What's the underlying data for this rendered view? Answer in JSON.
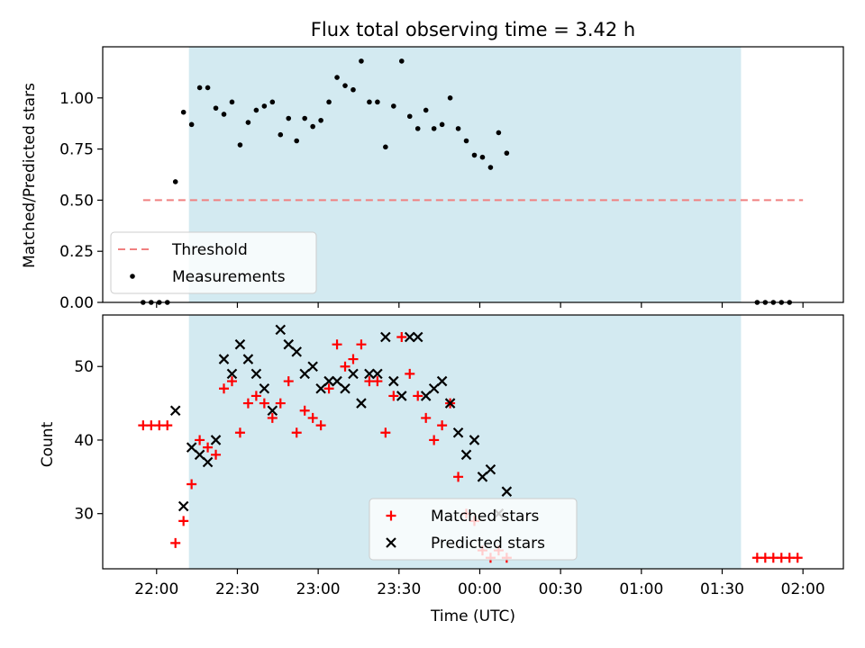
{
  "chart_data": [
    {
      "type": "scatter",
      "title": "Flux total observing time = 3.42 h",
      "xlabel": "",
      "ylabel": "Matched/Predicted stars",
      "ylim": [
        0.0,
        1.25
      ],
      "yticks": [
        "0.00",
        "0.25",
        "0.50",
        "0.75",
        "1.00"
      ],
      "yticks_values": [
        0.0,
        0.25,
        0.5,
        0.75,
        1.0
      ],
      "x_axis": "time (UTC), shared with lower panel",
      "shaded_interval": {
        "start": "22:12",
        "end": "01:37",
        "color": "#d3eaf1"
      },
      "threshold": {
        "name": "Threshold",
        "value": 0.5,
        "from": "21:55",
        "to": "02:00",
        "color": "#f08080",
        "style": "dashed"
      },
      "legend": {
        "placement": "lower-left",
        "entries": [
          "Threshold",
          "Measurements"
        ]
      },
      "series": [
        {
          "name": "Measurements",
          "color": "#000000",
          "marker": "dot",
          "points": [
            [
              "21:55",
              0.0
            ],
            [
              "21:58",
              0.0
            ],
            [
              "22:01",
              0.0
            ],
            [
              "22:04",
              0.0
            ],
            [
              "22:07",
              0.59
            ],
            [
              "22:10",
              0.93
            ],
            [
              "22:13",
              0.87
            ],
            [
              "22:16",
              1.05
            ],
            [
              "22:19",
              1.05
            ],
            [
              "22:22",
              0.95
            ],
            [
              "22:25",
              0.92
            ],
            [
              "22:28",
              0.98
            ],
            [
              "22:31",
              0.77
            ],
            [
              "22:34",
              0.88
            ],
            [
              "22:37",
              0.94
            ],
            [
              "22:40",
              0.96
            ],
            [
              "22:43",
              0.98
            ],
            [
              "22:46",
              0.82
            ],
            [
              "22:49",
              0.9
            ],
            [
              "22:52",
              0.79
            ],
            [
              "22:55",
              0.9
            ],
            [
              "22:58",
              0.86
            ],
            [
              "23:01",
              0.89
            ],
            [
              "23:04",
              0.98
            ],
            [
              "23:07",
              1.1
            ],
            [
              "23:10",
              1.06
            ],
            [
              "23:13",
              1.04
            ],
            [
              "23:16",
              1.18
            ],
            [
              "23:19",
              0.98
            ],
            [
              "23:22",
              0.98
            ],
            [
              "23:25",
              0.76
            ],
            [
              "23:28",
              0.96
            ],
            [
              "23:31",
              1.18
            ],
            [
              "23:34",
              0.91
            ],
            [
              "23:37",
              0.85
            ],
            [
              "23:40",
              0.94
            ],
            [
              "23:43",
              0.85
            ],
            [
              "23:46",
              0.87
            ],
            [
              "23:49",
              1.0
            ],
            [
              "23:52",
              0.85
            ],
            [
              "23:55",
              0.79
            ],
            [
              "23:58",
              0.72
            ],
            [
              "00:01",
              0.71
            ],
            [
              "00:04",
              0.66
            ],
            [
              "00:07",
              0.83
            ],
            [
              "00:10",
              0.73
            ],
            [
              "01:43",
              0.0
            ],
            [
              "01:46",
              0.0
            ],
            [
              "01:49",
              0.0
            ],
            [
              "01:52",
              0.0
            ],
            [
              "01:55",
              0.0
            ]
          ]
        }
      ]
    },
    {
      "type": "scatter",
      "title": "",
      "xlabel": "Time (UTC)",
      "ylabel": "Count",
      "ylim": [
        22.5,
        57
      ],
      "yticks": [
        "30",
        "40",
        "50"
      ],
      "yticks_values": [
        30,
        40,
        50
      ],
      "xticks": [
        "22:00",
        "22:30",
        "23:00",
        "23:30",
        "00:00",
        "00:30",
        "01:00",
        "01:30",
        "02:00"
      ],
      "shaded_interval": {
        "start": "22:12",
        "end": "01:37",
        "color": "#d3eaf1"
      },
      "legend": {
        "placement": "lower-center",
        "entries": [
          "Matched stars",
          "Predicted stars"
        ]
      },
      "series": [
        {
          "name": "Matched stars",
          "color": "#ff0000",
          "marker": "plus",
          "points": [
            [
              "21:55",
              42
            ],
            [
              "21:58",
              42
            ],
            [
              "22:01",
              42
            ],
            [
              "22:04",
              42
            ],
            [
              "22:07",
              26
            ],
            [
              "22:10",
              29
            ],
            [
              "22:13",
              34
            ],
            [
              "22:16",
              40
            ],
            [
              "22:19",
              39
            ],
            [
              "22:22",
              38
            ],
            [
              "22:25",
              47
            ],
            [
              "22:28",
              48
            ],
            [
              "22:31",
              41
            ],
            [
              "22:34",
              45
            ],
            [
              "22:37",
              46
            ],
            [
              "22:40",
              45
            ],
            [
              "22:43",
              43
            ],
            [
              "22:46",
              45
            ],
            [
              "22:49",
              48
            ],
            [
              "22:52",
              41
            ],
            [
              "22:55",
              44
            ],
            [
              "22:58",
              43
            ],
            [
              "23:01",
              42
            ],
            [
              "23:04",
              47
            ],
            [
              "23:07",
              53
            ],
            [
              "23:10",
              50
            ],
            [
              "23:13",
              51
            ],
            [
              "23:16",
              53
            ],
            [
              "23:19",
              48
            ],
            [
              "23:22",
              48
            ],
            [
              "23:25",
              41
            ],
            [
              "23:28",
              46
            ],
            [
              "23:31",
              54
            ],
            [
              "23:34",
              49
            ],
            [
              "23:37",
              46
            ],
            [
              "23:40",
              43
            ],
            [
              "23:43",
              40
            ],
            [
              "23:46",
              42
            ],
            [
              "23:49",
              45
            ],
            [
              "23:52",
              35
            ],
            [
              "23:55",
              30
            ],
            [
              "23:58",
              29
            ],
            [
              "00:01",
              25
            ],
            [
              "00:04",
              24
            ],
            [
              "00:07",
              25
            ],
            [
              "00:10",
              24
            ],
            [
              "01:43",
              24
            ],
            [
              "01:46",
              24
            ],
            [
              "01:49",
              24
            ],
            [
              "01:52",
              24
            ],
            [
              "01:55",
              24
            ],
            [
              "01:58",
              24
            ]
          ]
        },
        {
          "name": "Predicted stars",
          "color": "#000000",
          "marker": "x",
          "points": [
            [
              "22:07",
              44
            ],
            [
              "22:10",
              31
            ],
            [
              "22:13",
              39
            ],
            [
              "22:16",
              38
            ],
            [
              "22:19",
              37
            ],
            [
              "22:22",
              40
            ],
            [
              "22:25",
              51
            ],
            [
              "22:28",
              49
            ],
            [
              "22:31",
              53
            ],
            [
              "22:34",
              51
            ],
            [
              "22:37",
              49
            ],
            [
              "22:40",
              47
            ],
            [
              "22:43",
              44
            ],
            [
              "22:46",
              55
            ],
            [
              "22:49",
              53
            ],
            [
              "22:52",
              52
            ],
            [
              "22:55",
              49
            ],
            [
              "22:58",
              50
            ],
            [
              "23:01",
              47
            ],
            [
              "23:04",
              48
            ],
            [
              "23:07",
              48
            ],
            [
              "23:10",
              47
            ],
            [
              "23:13",
              49
            ],
            [
              "23:16",
              45
            ],
            [
              "23:19",
              49
            ],
            [
              "23:22",
              49
            ],
            [
              "23:25",
              54
            ],
            [
              "23:28",
              48
            ],
            [
              "23:31",
              46
            ],
            [
              "23:34",
              54
            ],
            [
              "23:37",
              54
            ],
            [
              "23:40",
              46
            ],
            [
              "23:43",
              47
            ],
            [
              "23:46",
              48
            ],
            [
              "23:49",
              45
            ],
            [
              "23:52",
              41
            ],
            [
              "23:55",
              38
            ],
            [
              "23:58",
              40
            ],
            [
              "00:01",
              35
            ],
            [
              "00:04",
              36
            ],
            [
              "00:07",
              30
            ],
            [
              "00:10",
              33
            ]
          ]
        }
      ]
    }
  ]
}
